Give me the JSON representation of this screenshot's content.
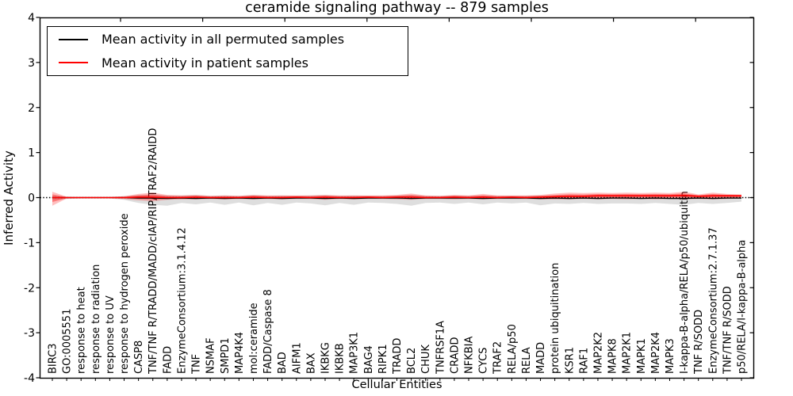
{
  "chart_data": {
    "type": "line",
    "title": "ceramide signaling pathway -- 879 samples",
    "xlabel": "Cellular Entities",
    "ylabel": "Inferred Activity",
    "ylim": [
      -4,
      4
    ],
    "ytick_labels": [
      "4",
      "3",
      "2",
      "1",
      "0",
      "-1",
      "-2",
      "-3",
      "-4"
    ],
    "ytick_values": [
      4,
      3,
      2,
      1,
      0,
      -1,
      -2,
      -3,
      -4
    ],
    "grid": "off",
    "legend_position": "upper-left",
    "zero_line": {
      "style": "dotted",
      "color": "#000000",
      "y": 0
    },
    "categories": [
      "BIRC3",
      "GO:0005551",
      "response to heat",
      "response to radiation",
      "response to UV",
      "response to hydrogen peroxide",
      "CASP8",
      "TNF/TNF R/TRADD/MADD/cIAP/RIP/TRAF2/RAIDD",
      "FADD",
      "EnzymeConsortium:3.1.4.12",
      "TNF",
      "NSMAF",
      "SMPD1",
      "MAP4K4",
      "mol:ceramide",
      "FADD/Caspase 8",
      "BAD",
      "AIFM1",
      "BAX",
      "IKBKG",
      "IKBKB",
      "MAP3K1",
      "BAG4",
      "RIPK1",
      "TRADD",
      "BCL2",
      "CHUK",
      "TNFRSF1A",
      "CRADD",
      "NFKBIA",
      "CYCS",
      "TRAF2",
      "RELA/p50",
      "RELA",
      "MADD",
      "protein ubiquitination",
      "KSR1",
      "RAF1",
      "MAP2K2",
      "MAPK8",
      "MAP2K1",
      "MAPK1",
      "MAP2K4",
      "MAPK3",
      "I-kappa-B-alpha/RELA/p50/ubiquitin",
      "TNF R/SODD",
      "EnzymeConsortium:2.7.1.37",
      "TNF/TNF R/SODD",
      "p50/RELA/I-kappa-B-alpha"
    ],
    "series": [
      {
        "name": "Mean activity in all permuted samples",
        "color": "#000000",
        "values": [
          0,
          0,
          0,
          0,
          0,
          0,
          -0.01,
          -0.01,
          -0.02,
          -0.01,
          -0.02,
          -0.01,
          -0.02,
          -0.01,
          -0.02,
          -0.01,
          -0.02,
          -0.01,
          -0.01,
          -0.02,
          -0.01,
          -0.02,
          -0.01,
          -0.01,
          -0.01,
          -0.02,
          -0.01,
          -0.01,
          -0.01,
          -0.01,
          -0.02,
          -0.01,
          -0.01,
          -0.01,
          -0.02,
          -0.01,
          -0.02,
          -0.01,
          -0.02,
          -0.01,
          -0.01,
          -0.02,
          -0.01,
          -0.02,
          -0.02,
          -0.01,
          -0.02,
          -0.01,
          -0.01
        ]
      },
      {
        "name": "Mean activity in patient samples",
        "color": "#ff0000",
        "values": [
          0,
          0,
          0,
          0,
          0,
          0,
          0.01,
          0.01,
          0,
          0,
          0.01,
          0,
          0,
          0,
          0.01,
          0,
          0,
          0.01,
          0,
          0.01,
          0,
          0,
          0.01,
          0,
          0.01,
          0.01,
          0,
          0,
          0.01,
          0,
          0.01,
          0,
          0.01,
          0,
          0.01,
          0.02,
          0.03,
          0.03,
          0.04,
          0.04,
          0.04,
          0.04,
          0.04,
          0.04,
          0.05,
          0.03,
          0.04,
          0.04,
          0.04
        ]
      }
    ],
    "bands": [
      {
        "name": "permuted-samples-band",
        "color": "rgba(0,0,0,0.13)",
        "upper": [
          0.04,
          0.02,
          0.015,
          0.015,
          0.015,
          0.03,
          0.06,
          0.07,
          0.05,
          0.05,
          0.06,
          0.04,
          0.05,
          0.04,
          0.06,
          0.04,
          0.05,
          0.04,
          0.05,
          0.06,
          0.04,
          0.05,
          0.04,
          0.04,
          0.05,
          0.06,
          0.04,
          0.04,
          0.05,
          0.04,
          0.05,
          0.04,
          0.04,
          0.04,
          0.05,
          0.05,
          0.05,
          0.04,
          0.05,
          0.05,
          0.04,
          0.05,
          0.04,
          0.05,
          0.06,
          0.04,
          0.05,
          0.04,
          0.03
        ],
        "lower": [
          -0.06,
          -0.03,
          -0.02,
          -0.02,
          -0.02,
          -0.05,
          -0.12,
          -0.16,
          -0.18,
          -0.12,
          -0.15,
          -0.11,
          -0.16,
          -0.11,
          -0.17,
          -0.12,
          -0.16,
          -0.11,
          -0.13,
          -0.17,
          -0.12,
          -0.16,
          -0.11,
          -0.12,
          -0.14,
          -0.18,
          -0.12,
          -0.11,
          -0.14,
          -0.11,
          -0.15,
          -0.11,
          -0.13,
          -0.11,
          -0.17,
          -0.13,
          -0.14,
          -0.12,
          -0.14,
          -0.13,
          -0.13,
          -0.14,
          -0.12,
          -0.14,
          -0.16,
          -0.12,
          -0.14,
          -0.12,
          -0.09
        ]
      },
      {
        "name": "patient-samples-band",
        "color": "rgba(255,0,0,0.25)",
        "upper": [
          0.13,
          0.02,
          0.015,
          0.015,
          0.015,
          0.03,
          0.08,
          0.11,
          0.06,
          0.05,
          0.06,
          0.04,
          0.05,
          0.04,
          0.06,
          0.05,
          0.05,
          0.05,
          0.05,
          0.06,
          0.05,
          0.05,
          0.05,
          0.05,
          0.06,
          0.09,
          0.05,
          0.04,
          0.06,
          0.05,
          0.08,
          0.05,
          0.05,
          0.05,
          0.06,
          0.09,
          0.11,
          0.1,
          0.11,
          0.1,
          0.11,
          0.1,
          0.11,
          0.1,
          0.13,
          0.07,
          0.11,
          0.08,
          0.07
        ],
        "lower": [
          -0.18,
          -0.02,
          -0.015,
          -0.015,
          -0.015,
          -0.03,
          -0.06,
          -0.08,
          -0.05,
          -0.04,
          -0.04,
          -0.03,
          -0.04,
          -0.03,
          -0.04,
          -0.03,
          -0.04,
          -0.03,
          -0.03,
          -0.05,
          -0.03,
          -0.04,
          -0.03,
          -0.03,
          -0.04,
          -0.05,
          -0.03,
          -0.03,
          -0.04,
          -0.03,
          -0.04,
          -0.03,
          -0.03,
          -0.03,
          -0.04,
          -0.04,
          -0.04,
          -0.03,
          -0.04,
          -0.03,
          -0.04,
          -0.03,
          -0.04,
          -0.03,
          -0.04,
          -0.03,
          -0.04,
          -0.03,
          -0.02
        ]
      }
    ],
    "band_inner_scale": 0.55,
    "band_inner_color": "rgba(255,0,0,0.35)"
  }
}
